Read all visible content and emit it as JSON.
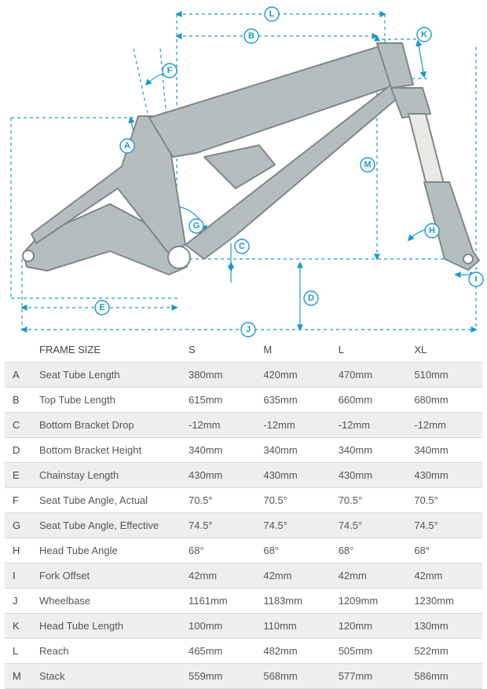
{
  "diagram": {
    "markers": {
      "A": "A",
      "B": "B",
      "C": "C",
      "D": "D",
      "E": "E",
      "F": "F",
      "G": "G",
      "H": "H",
      "I": "I",
      "J": "J",
      "K": "K",
      "L": "L",
      "M": "M"
    },
    "colors": {
      "accent": "#1b99c8",
      "frame_fill": "#b6bdbf",
      "frame_stroke": "#7e8789",
      "stanchion": "#e9e9e6"
    }
  },
  "table": {
    "header": {
      "label_col": "FRAME SIZE",
      "sizes": [
        "S",
        "M",
        "L",
        "XL"
      ]
    },
    "rows": [
      {
        "key": "A",
        "label": "Seat Tube Length",
        "v": [
          "380mm",
          "420mm",
          "470mm",
          "510mm"
        ]
      },
      {
        "key": "B",
        "label": "Top Tube Length",
        "v": [
          "615mm",
          "635mm",
          "660mm",
          "680mm"
        ]
      },
      {
        "key": "C",
        "label": "Bottom Bracket Drop",
        "v": [
          "-12mm",
          "-12mm",
          "-12mm",
          "-12mm"
        ]
      },
      {
        "key": "D",
        "label": "Bottom Bracket Height",
        "v": [
          "340mm",
          "340mm",
          "340mm",
          "340mm"
        ]
      },
      {
        "key": "E",
        "label": "Chainstay Length",
        "v": [
          "430mm",
          "430mm",
          "430mm",
          "430mm"
        ]
      },
      {
        "key": "F",
        "label": "Seat Tube Angle, Actual",
        "v": [
          "70.5°",
          "70.5°",
          "70.5°",
          "70.5°"
        ]
      },
      {
        "key": "G",
        "label": "Seat Tube Angle, Effective",
        "v": [
          "74.5°",
          "74.5°",
          "74.5°",
          "74.5°"
        ]
      },
      {
        "key": "H",
        "label": "Head Tube Angle",
        "v": [
          "68°",
          "68°",
          "68°",
          "68°"
        ]
      },
      {
        "key": "I",
        "label": "Fork Offset",
        "v": [
          "42mm",
          "42mm",
          "42mm",
          "42mm"
        ]
      },
      {
        "key": "J",
        "label": "Wheelbase",
        "v": [
          "1161mm",
          "1183mm",
          "1209mm",
          "1230mm"
        ]
      },
      {
        "key": "K",
        "label": "Head Tube Length",
        "v": [
          "100mm",
          "110mm",
          "120mm",
          "130mm"
        ]
      },
      {
        "key": "L",
        "label": "Reach",
        "v": [
          "465mm",
          "482mm",
          "505mm",
          "522mm"
        ]
      },
      {
        "key": "M",
        "label": "Stack",
        "v": [
          "559mm",
          "568mm",
          "577mm",
          "586mm"
        ]
      }
    ]
  }
}
